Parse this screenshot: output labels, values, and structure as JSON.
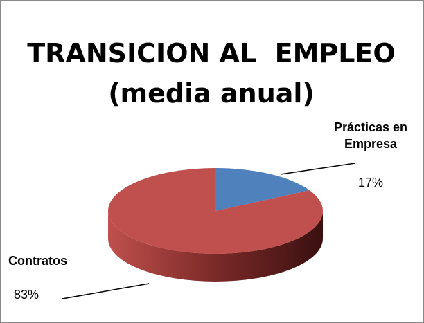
{
  "chart_data": {
    "type": "pie3d",
    "title": [
      "TRANSICION AL  EMPLEO",
      "(media anual)"
    ],
    "categories": [
      "Prácticas en Empresa",
      "Contratos"
    ],
    "values": [
      17,
      83
    ],
    "value_labels": [
      "17%",
      "83%"
    ],
    "colors": [
      "#4f81bd",
      "#c0504d"
    ]
  }
}
